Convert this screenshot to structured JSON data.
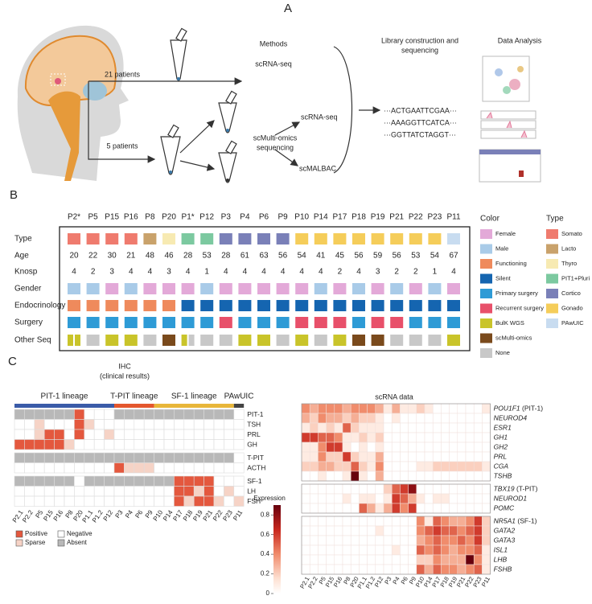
{
  "panel_labels": [
    "A",
    "B",
    "C"
  ],
  "panel_a": {
    "methods_title": "Methods",
    "library_title": [
      "Library construction and",
      "sequencing"
    ],
    "analysis_title": "Data Analysis",
    "arm1": "21 patients",
    "arm2": "5 patients",
    "method1": "scRNA-seq",
    "method2": "scRNA-seq",
    "method3": [
      "scMulti-omics",
      "sequencing"
    ],
    "method4": "scMALBAC",
    "sequences": [
      "···ACTGAATTCGAA···",
      "···AAAGGTTCATCA···",
      "···GGTTATCTAGGT···"
    ]
  },
  "panel_b": {
    "patients": [
      "P2*",
      "P5",
      "P15",
      "P16",
      "P8",
      "P20",
      "P1*",
      "P12",
      "P3",
      "P4",
      "P6",
      "P9",
      "P10",
      "P14",
      "P17",
      "P18",
      "P19",
      "P21",
      "P22",
      "P23",
      "P11"
    ],
    "row_labels": [
      "Type",
      "Age",
      "Knosp",
      "Gender",
      "Endocrinology",
      "Surgery",
      "Other Seq"
    ],
    "type": [
      0,
      0,
      0,
      0,
      1,
      2,
      3,
      3,
      4,
      4,
      4,
      4,
      5,
      5,
      5,
      5,
      5,
      5,
      5,
      5,
      6
    ],
    "age": [
      20,
      22,
      30,
      21,
      48,
      46,
      28,
      53,
      28,
      61,
      63,
      56,
      54,
      41,
      45,
      56,
      59,
      56,
      53,
      54,
      67
    ],
    "knosp": [
      4,
      2,
      3,
      4,
      4,
      3,
      4,
      1,
      4,
      4,
      4,
      4,
      4,
      4,
      2,
      4,
      3,
      2,
      2,
      1,
      4
    ],
    "gender": [
      1,
      1,
      0,
      1,
      0,
      0,
      0,
      1,
      0,
      0,
      0,
      0,
      0,
      1,
      0,
      1,
      0,
      1,
      0,
      1,
      0
    ],
    "endocrinology": [
      2,
      2,
      2,
      2,
      2,
      2,
      3,
      3,
      3,
      3,
      3,
      3,
      3,
      3,
      3,
      3,
      3,
      3,
      3,
      3,
      3
    ],
    "surgery": [
      4,
      4,
      4,
      4,
      4,
      4,
      4,
      4,
      5,
      4,
      4,
      4,
      5,
      5,
      5,
      4,
      5,
      5,
      4,
      4,
      4
    ],
    "other_seq": [
      [
        6,
        6
      ],
      [
        8
      ],
      [
        6
      ],
      [
        6
      ],
      [
        8
      ],
      [
        7
      ],
      [
        6,
        8
      ],
      [
        8
      ],
      [
        8
      ],
      [
        6
      ],
      [
        6
      ],
      [
        8
      ],
      [
        6
      ],
      [
        8
      ],
      [
        6
      ],
      [
        7
      ],
      [
        7
      ],
      [
        8
      ],
      [
        8
      ],
      [
        8
      ],
      [
        6
      ]
    ],
    "color_legend": {
      "title": "Color",
      "items": [
        {
          "label": "Female",
          "color": "#e3a9d8"
        },
        {
          "label": "Male",
          "color": "#a9cbe8"
        },
        {
          "label": "Functioning",
          "color": "#ef8a5c"
        },
        {
          "label": "Silent",
          "color": "#1565b0"
        },
        {
          "label": "Primary surgery",
          "color": "#2e9bd6"
        },
        {
          "label": "Recurrent surgery",
          "color": "#e8506a"
        },
        {
          "label": "BulK WGS",
          "color": "#c9c42a"
        },
        {
          "label": "scMulti-omics",
          "color": "#7a4a1c"
        },
        {
          "label": "None",
          "color": "#c8c8c8"
        }
      ]
    },
    "type_legend": {
      "title": "Type",
      "items": [
        {
          "label": "Somato",
          "color": "#ef7b6e"
        },
        {
          "label": "Lacto",
          "color": "#c9a26b"
        },
        {
          "label": "Thyro",
          "color": "#f7eab2"
        },
        {
          "label": "PIT1+Pluri",
          "color": "#7cc9a0"
        },
        {
          "label": "Cortico",
          "color": "#7a80b8"
        },
        {
          "label": "Gonado",
          "color": "#f5cd5a"
        },
        {
          "label": "PAwUIC",
          "color": "#c8dcf0"
        }
      ]
    }
  },
  "panel_c": {
    "samples": [
      "P2.1",
      "P2.2",
      "P5",
      "P15",
      "P16",
      "P8",
      "P20",
      "P1.1",
      "P1.2",
      "P12",
      "P3",
      "P4",
      "P6",
      "P9",
      "P10",
      "P14",
      "P17",
      "P18",
      "P19",
      "P21",
      "P22",
      "P23",
      "P11"
    ],
    "ihc": {
      "title": "IHC",
      "subtitle": "(clinical results)",
      "lineages": [
        {
          "label": "PIT-1 lineage",
          "color": "#3a5ba8",
          "n": 10
        },
        {
          "label": "T-PIT lineage",
          "color": "#e4572e",
          "n": 4
        },
        {
          "label": "SF-1 lineage",
          "color": "#e8b63a",
          "n": 8
        },
        {
          "label": "PAwUIC",
          "color": "#444444",
          "n": 1
        }
      ],
      "legend": [
        {
          "label": "Positive",
          "color": "#e4583e"
        },
        {
          "label": "Negative",
          "color": "#ffffff"
        },
        {
          "label": "Sparse",
          "color": "#f6d3c6"
        },
        {
          "label": "Absent",
          "color": "#b8b8b8"
        }
      ],
      "marker_groups": [
        [
          {
            "label": "PIT-1",
            "states": [
              3,
              3,
              3,
              3,
              3,
              3,
              0,
              1,
              1,
              1,
              3,
              3,
              3,
              3,
              3,
              3,
              3,
              3,
              3,
              3,
              3,
              3,
              1
            ]
          },
          {
            "label": "TSH",
            "states": [
              1,
              1,
              2,
              1,
              1,
              1,
              0,
              2,
              1,
              1,
              1,
              1,
              1,
              1,
              1,
              1,
              1,
              1,
              1,
              1,
              1,
              1,
              1
            ]
          },
          {
            "label": "PRL",
            "states": [
              1,
              1,
              2,
              0,
              0,
              1,
              0,
              1,
              1,
              2,
              1,
              1,
              1,
              1,
              1,
              1,
              1,
              1,
              1,
              1,
              1,
              1,
              1
            ]
          },
          {
            "label": "GH",
            "states": [
              0,
              0,
              0,
              0,
              0,
              2,
              1,
              1,
              1,
              1,
              1,
              1,
              1,
              1,
              1,
              1,
              1,
              1,
              1,
              1,
              1,
              1,
              1
            ]
          }
        ],
        [
          {
            "label": "T-PIT",
            "states": [
              3,
              3,
              3,
              3,
              3,
              3,
              3,
              3,
              3,
              3,
              3,
              3,
              3,
              3,
              3,
              3,
              3,
              3,
              3,
              3,
              3,
              3,
              1
            ]
          },
          {
            "label": "ACTH",
            "states": [
              1,
              1,
              1,
              1,
              1,
              1,
              1,
              1,
              1,
              1,
              0,
              2,
              2,
              2,
              1,
              1,
              1,
              1,
              1,
              1,
              1,
              1,
              1
            ]
          }
        ],
        [
          {
            "label": "SF-1",
            "states": [
              3,
              3,
              3,
              3,
              3,
              3,
              1,
              3,
              3,
              3,
              3,
              3,
              3,
              3,
              3,
              3,
              0,
              0,
              0,
              0,
              1,
              1,
              1
            ]
          },
          {
            "label": "LH",
            "states": [
              1,
              1,
              1,
              1,
              1,
              1,
              1,
              1,
              1,
              1,
              1,
              1,
              1,
              1,
              1,
              1,
              0,
              0,
              2,
              0,
              1,
              2,
              1
            ]
          },
          {
            "label": "FSH",
            "states": [
              1,
              1,
              1,
              1,
              1,
              1,
              1,
              1,
              1,
              1,
              1,
              1,
              1,
              1,
              1,
              1,
              0,
              2,
              0,
              0,
              2,
              1,
              2
            ]
          }
        ]
      ]
    },
    "scrna": {
      "title": "scRNA data",
      "gene_groups": [
        [
          {
            "gene": "POU1F1",
            "protein": "(PIT-1)",
            "values": [
              0.4,
              0.3,
              0.4,
              0.4,
              0.4,
              0.3,
              0.4,
              0.4,
              0.4,
              0.3,
              0.1,
              0.3,
              0.1,
              0.1,
              0.2,
              0.1,
              0,
              0,
              0,
              0,
              0,
              0,
              0.1
            ]
          },
          {
            "gene": "NEUROD4",
            "values": [
              0.3,
              0.2,
              0.4,
              0.3,
              0.3,
              0.2,
              0.3,
              0.2,
              0.2,
              0.1,
              0,
              0.1,
              0,
              0,
              0,
              0,
              0,
              0,
              0,
              0,
              0,
              0,
              0
            ]
          },
          {
            "gene": "ESR1",
            "values": [
              0.1,
              0.2,
              0.1,
              0.2,
              0.1,
              0.5,
              0.2,
              0.1,
              0.1,
              0.1,
              0,
              0,
              0,
              0,
              0,
              0,
              0,
              0,
              0,
              0,
              0,
              0,
              0
            ]
          },
          {
            "gene": "GH1",
            "values": [
              0.6,
              0.6,
              0.5,
              0.5,
              0.4,
              0.1,
              0.1,
              0.2,
              0.1,
              0.2,
              0,
              0,
              0,
              0,
              0,
              0,
              0,
              0,
              0,
              0,
              0,
              0,
              0
            ]
          },
          {
            "gene": "GH2",
            "values": [
              0.1,
              0.1,
              0.4,
              0.6,
              0.6,
              0.1,
              0,
              0.1,
              0,
              0.1,
              0,
              0,
              0,
              0,
              0,
              0,
              0,
              0,
              0,
              0,
              0,
              0,
              0
            ]
          },
          {
            "gene": "PRL",
            "values": [
              0.1,
              0.1,
              0.4,
              0.2,
              0.2,
              0.6,
              0.2,
              0.1,
              0.1,
              0.3,
              0,
              0,
              0,
              0,
              0,
              0,
              0,
              0,
              0,
              0,
              0,
              0,
              0
            ]
          },
          {
            "gene": "CGA",
            "values": [
              0.2,
              0.2,
              0.3,
              0.3,
              0.2,
              0.2,
              0.5,
              0.2,
              0.1,
              0.4,
              0,
              0,
              0,
              0,
              0.1,
              0.1,
              0.2,
              0.2,
              0.2,
              0.2,
              0.2,
              0.2,
              0.1
            ]
          },
          {
            "gene": "TSHB",
            "values": [
              0,
              0,
              0.1,
              0,
              0,
              0.1,
              0.9,
              0.1,
              0,
              0.3,
              0,
              0,
              0,
              0,
              0,
              0,
              0,
              0,
              0,
              0,
              0,
              0,
              0
            ]
          }
        ],
        [
          {
            "gene": "TBX19",
            "protein": "(T-PIT)",
            "values": [
              0,
              0,
              0,
              0,
              0,
              0,
              0,
              0,
              0,
              0,
              0.2,
              0.5,
              0.6,
              0.8,
              0,
              0,
              0,
              0,
              0,
              0,
              0,
              0,
              0
            ]
          },
          {
            "gene": "NEUROD1",
            "values": [
              0,
              0,
              0,
              0,
              0,
              0.1,
              0,
              0.1,
              0.1,
              0,
              0.1,
              0.6,
              0.5,
              0.3,
              0.1,
              0,
              0.1,
              0.1,
              0,
              0,
              0,
              0,
              0
            ]
          },
          {
            "gene": "POMC",
            "values": [
              0,
              0,
              0,
              0,
              0,
              0,
              0,
              0.5,
              0.3,
              0.1,
              0.3,
              0.6,
              0.4,
              0.6,
              0,
              0,
              0,
              0,
              0,
              0,
              0,
              0,
              0
            ]
          }
        ],
        [
          {
            "gene": "NR5A1",
            "protein": "(SF-1)",
            "values": [
              0,
              0,
              0,
              0,
              0,
              0,
              0,
              0,
              0,
              0,
              0,
              0,
              0,
              0,
              0.4,
              0.1,
              0.5,
              0.4,
              0.3,
              0.3,
              0.4,
              0.6,
              0.2
            ]
          },
          {
            "gene": "GATA2",
            "values": [
              0,
              0,
              0,
              0,
              0,
              0,
              0,
              0,
              0,
              0.1,
              0,
              0,
              0,
              0,
              0.4,
              0.5,
              0.6,
              0.5,
              0.5,
              0.4,
              0.5,
              0.6,
              0.2
            ]
          },
          {
            "gene": "GATA3",
            "values": [
              0,
              0,
              0,
              0,
              0,
              0,
              0,
              0,
              0,
              0,
              0,
              0,
              0,
              0,
              0.3,
              0.4,
              0.5,
              0.4,
              0.4,
              0.5,
              0.4,
              0.6,
              0.2
            ]
          },
          {
            "gene": "ISL1",
            "values": [
              0,
              0,
              0,
              0,
              0,
              0,
              0,
              0,
              0,
              0,
              0,
              0.1,
              0,
              0,
              0.5,
              0.4,
              0.5,
              0.4,
              0.3,
              0.4,
              0.4,
              0.5,
              0.1
            ]
          },
          {
            "gene": "LHB",
            "values": [
              0,
              0,
              0,
              0,
              0,
              0,
              0,
              0,
              0,
              0,
              0,
              0,
              0,
              0,
              0.2,
              0.2,
              0.4,
              0.3,
              0.3,
              0.3,
              0.9,
              0.4,
              0.1
            ]
          },
          {
            "gene": "FSHB",
            "values": [
              0,
              0,
              0,
              0,
              0,
              0,
              0,
              0,
              0,
              0,
              0,
              0,
              0,
              0,
              0.5,
              0.3,
              0.5,
              0.4,
              0.4,
              0.3,
              0.4,
              0.5,
              0.1
            ]
          }
        ]
      ],
      "colorbar": {
        "title": "Expression",
        "lim": [
          0,
          0.9
        ],
        "ticks": [
          0,
          0.2,
          0.4,
          0.6,
          0.8
        ]
      }
    }
  }
}
